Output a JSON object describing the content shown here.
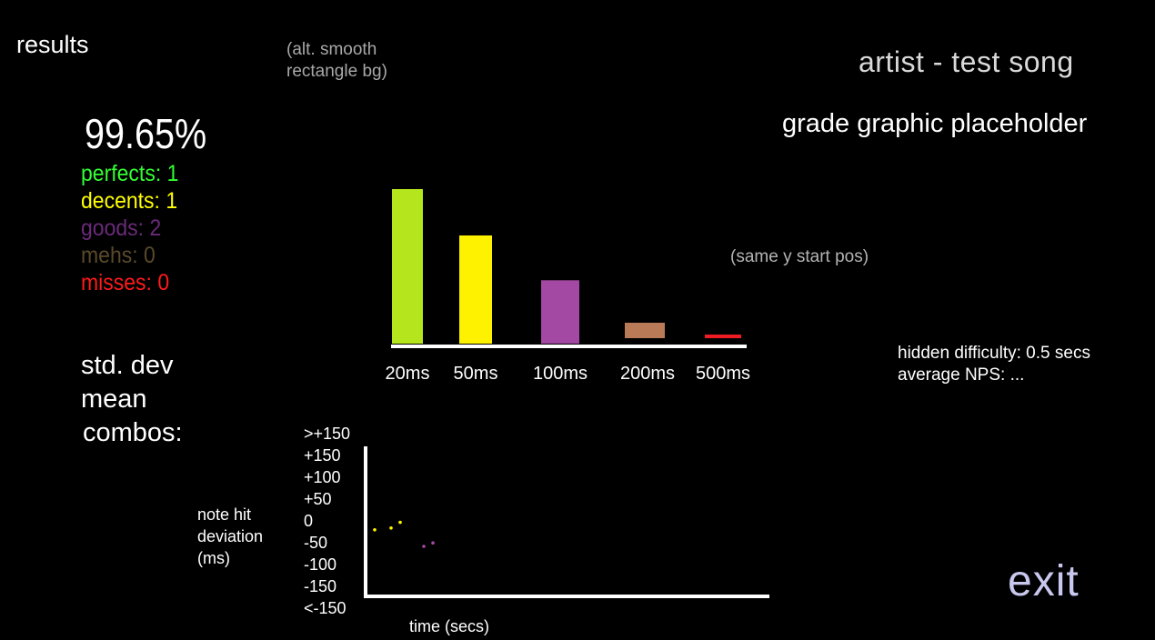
{
  "header": {
    "title": "results",
    "note": "(alt. smooth rectangle bg)",
    "song": "artist - test song",
    "grade": "grade graphic placeholder"
  },
  "accuracy": "99.65%",
  "judgements": {
    "perfects": "perfects: 1",
    "decents": "decents: 1",
    "goods": "goods: 2",
    "mehs": "mehs: 0",
    "misses": "misses: 0"
  },
  "stats": {
    "std_dev": "std. dev",
    "mean": "mean",
    "combos": "combos:"
  },
  "side_info": {
    "same_y": "(same y start pos)",
    "hidden_difficulty": "hidden difficulty: 0.5 secs",
    "average_nps": "average NPS: ..."
  },
  "exit_label": "exit",
  "colors": {
    "perfect": "#b5e61d",
    "decent": "#fff200",
    "good": "#a349a4",
    "meh": "#b97a57",
    "miss": "#ed1c24"
  },
  "chart_data": [
    {
      "type": "bar",
      "title": "",
      "categories": [
        "20ms",
        "50ms",
        "100ms",
        "200ms",
        "500ms"
      ],
      "values": [
        100,
        70,
        41,
        10,
        2
      ],
      "colors": [
        "#b5e61d",
        "#fff200",
        "#a349a4",
        "#b97a57",
        "#ed1c24"
      ],
      "ylim": [
        0,
        100
      ],
      "xlabel": "",
      "ylabel": ""
    },
    {
      "type": "scatter",
      "xlabel": "time (secs)",
      "ylabel": "note hit deviation (ms)",
      "ytick_labels": [
        ">+150",
        "+150",
        "+100",
        "+50",
        "0",
        "-50",
        "-100",
        "-150",
        "<-150"
      ],
      "ylim": [
        -200,
        200
      ],
      "xlim": [
        0,
        10
      ],
      "points": [
        {
          "x": 0.25,
          "y": -12,
          "color": "#fff200"
        },
        {
          "x": 0.7,
          "y": -8,
          "color": "#fff200"
        },
        {
          "x": 0.95,
          "y": 5,
          "color": "#fff200"
        },
        {
          "x": 1.6,
          "y": -50,
          "color": "#a349a4"
        },
        {
          "x": 1.85,
          "y": -42,
          "color": "#a349a4"
        }
      ]
    }
  ]
}
